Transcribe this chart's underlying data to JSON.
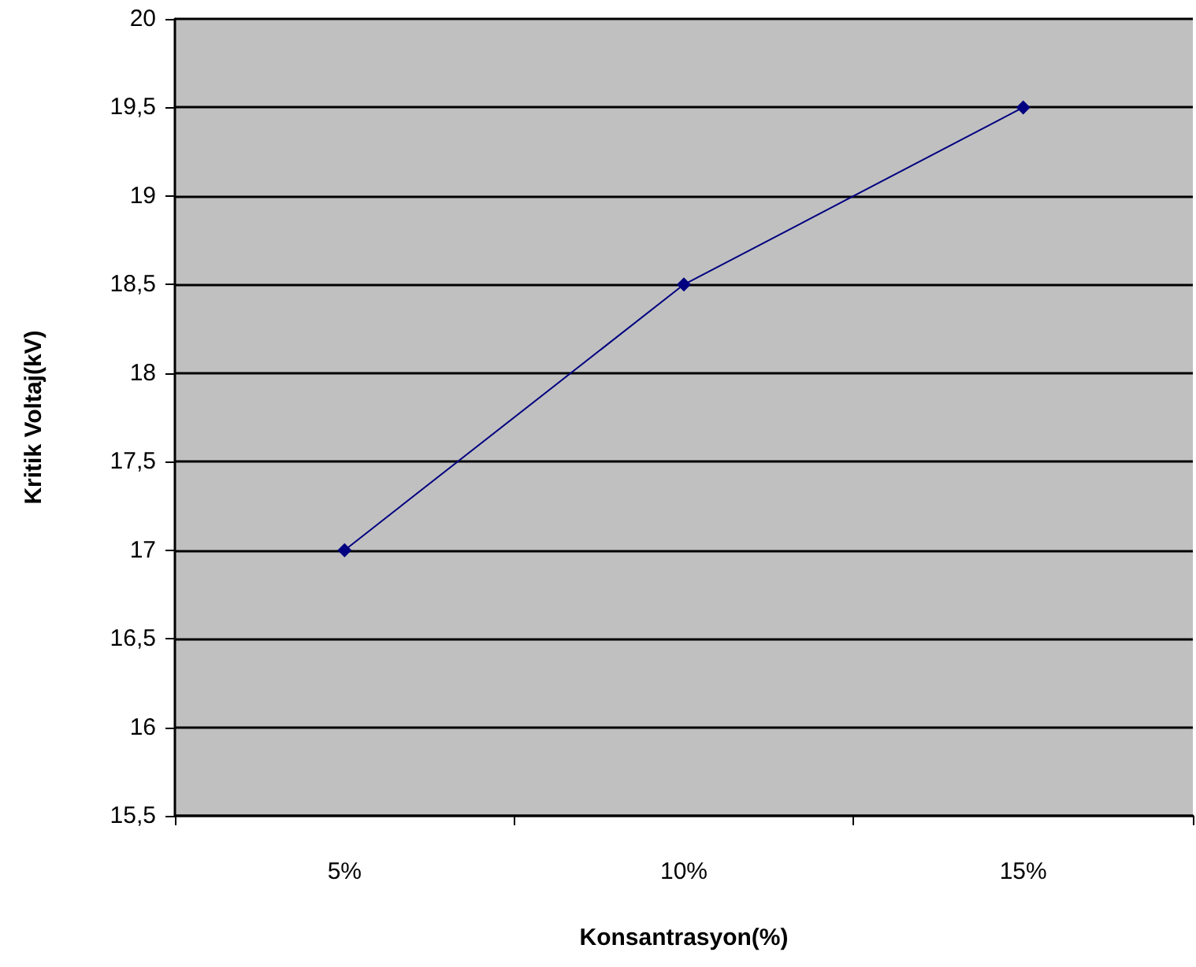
{
  "chart_data": {
    "type": "line",
    "xlabel": "Konsantrasyon(%)",
    "ylabel": "Kritik Voltaj(kV)",
    "categories": [
      "5%",
      "10%",
      "15%"
    ],
    "series": [
      {
        "color": "#000080",
        "values": [
          17,
          18.5,
          19.5
        ]
      }
    ],
    "ylim": [
      15.5,
      20
    ],
    "yticks": [
      {
        "value": 15.5,
        "label": "15,5"
      },
      16,
      {
        "value": 16.5,
        "label": "16,5"
      },
      17,
      {
        "value": 17.5,
        "label": "17,5"
      },
      18,
      {
        "value": 18.5,
        "label": "18,5"
      },
      19,
      {
        "value": 19.5,
        "label": "19,5"
      },
      20
    ],
    "grid": "y",
    "marker": "diamond",
    "line_style": "solid"
  }
}
